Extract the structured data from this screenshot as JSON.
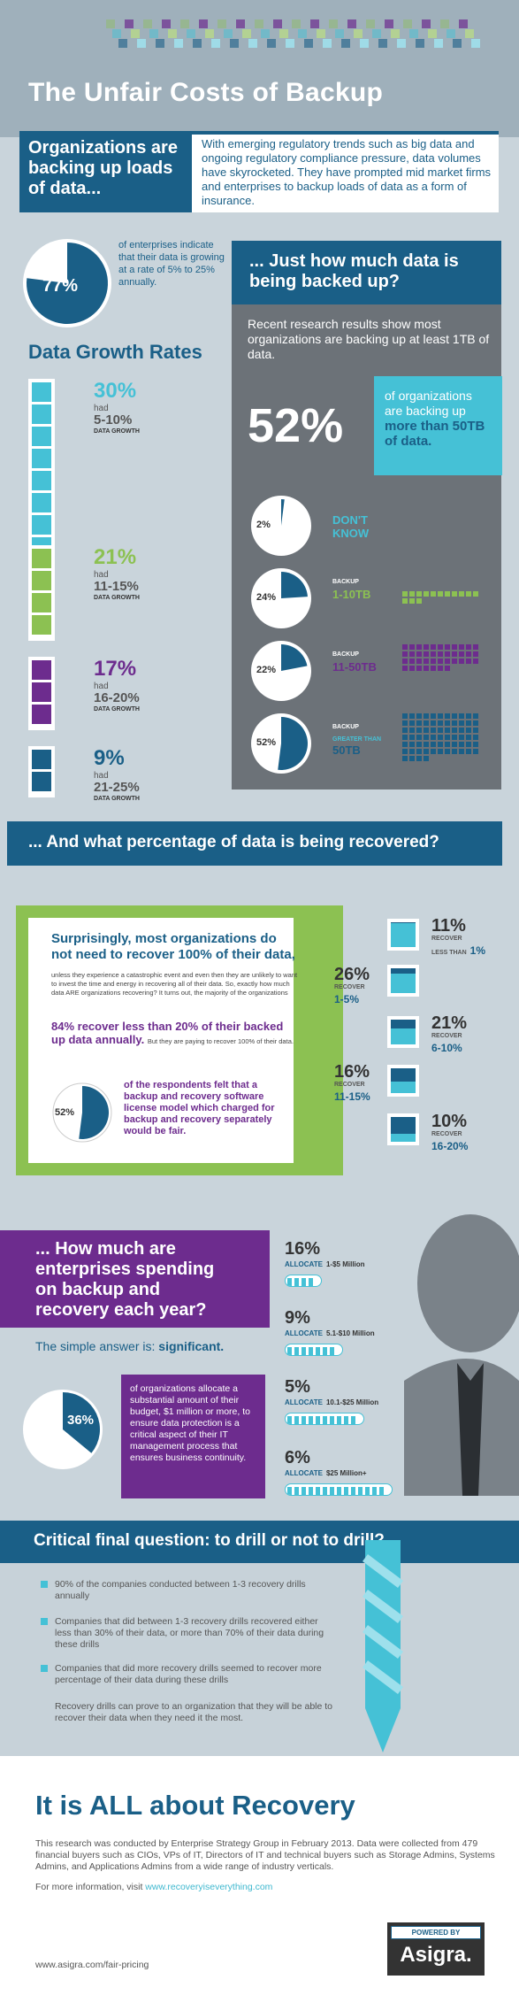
{
  "header": {
    "title": "The Unfair Costs of Backup"
  },
  "intro": {
    "label": "Organizations are backing up loads of data...",
    "text": "With emerging regulatory trends such as big data and ongoing regulatory compliance pressure, data volumes have skyrocketed. They have prompted mid market firms and enterprises to backup loads of data as a form of insurance."
  },
  "growth": {
    "pie_pct": "77%",
    "pie_fraction": 0.77,
    "pie_text": "of enterprises indicate that their data is growing at a rate of 5% to 25% annually."
  },
  "data_growth": {
    "title": "Data Growth Rates",
    "had": "had",
    "sub": "DATA GROWTH",
    "items": [
      {
        "pct": "30%",
        "range": "5-10%",
        "color": "#45c1d6",
        "blocks": 8
      },
      {
        "pct": "21%",
        "range": "11-15%",
        "color": "#8cc152",
        "blocks": 4
      },
      {
        "pct": "17%",
        "range": "16-20%",
        "color": "#6d2c8e",
        "blocks": 3
      },
      {
        "pct": "9%",
        "range": "21-25%",
        "color": "#1a5f87",
        "blocks": 2
      }
    ]
  },
  "backed_up": {
    "heading": "... Just how much data is being backed up?",
    "text": "Recent research results show most organizations are backing up at least 1TB of data.",
    "big_pct": "52%",
    "big_text_a": "of organizations are backing up",
    "big_text_b": "more than 50TB of data.",
    "pies": [
      {
        "pct": "2%",
        "value": 0.02,
        "label": "",
        "range": "DON'T KNOW",
        "range_color": "#45c1d6"
      },
      {
        "pct": "24%",
        "value": 0.24,
        "label": "BACKUP",
        "range": "1-10TB",
        "range_color": "#8cc152"
      },
      {
        "pct": "22%",
        "value": 0.22,
        "label": "BACKUP",
        "range": "11-50TB",
        "range_color": "#6d2c8e"
      },
      {
        "pct": "52%",
        "value": 0.52,
        "label": "BACKUP",
        "sublabel": "GREATER THAN",
        "range": "50TB",
        "range_color": "#1a5f87"
      }
    ]
  },
  "recovery_banner": "... And what percentage of data is being recovered?",
  "recovery": {
    "heading_a": "Surprisingly, most organizations do not need to recover 100% of their data,",
    "heading_small": "unless they experience a catastrophic event and even then they are unlikely to want to invest the time and energy in recovering all of their data. So, exactly how much data ARE organizations recovering? It turns out, the majority of the organizations",
    "highlight": "84% recover less than 20% of their backed up data annually.",
    "highlight_tail": "But they are paying to recover 100% of their data.",
    "pie_pct": "52%",
    "pie_fraction": 0.52,
    "pie_text": "of the respondents felt that a backup and recovery software license model which charged for backup and recovery separately would be fair.",
    "recover_word": "RECOVER",
    "items": [
      {
        "pct": "11%",
        "lead": "LESS THAN",
        "range": "1%"
      },
      {
        "pct": "26%",
        "lead": "",
        "range": "1-5%"
      },
      {
        "pct": "21%",
        "lead": "",
        "range": "6-10%"
      },
      {
        "pct": "16%",
        "lead": "",
        "range": "11-15%"
      },
      {
        "pct": "10%",
        "lead": "",
        "range": "16-20%"
      }
    ]
  },
  "spending": {
    "heading": "... How much are enterprises spending on backup and recovery each year?",
    "simple_a": "The simple answer is:",
    "simple_b": "significant.",
    "pie_pct": "36%",
    "pie_fraction": 0.36,
    "box_text": "of organizations allocate a substantial amount of their budget, $1 million or more, to ensure data protection is a critical aspect of their IT management process that ensures business continuity.",
    "allocate_word": "ALLOCATE",
    "items": [
      {
        "pct": "16%",
        "range": "1-$5 Million",
        "segments": 4
      },
      {
        "pct": "9%",
        "range": "5.1-$10 Million",
        "segments": 7
      },
      {
        "pct": "5%",
        "range": "10.1-$25 Million",
        "segments": 10
      },
      {
        "pct": "6%",
        "range": "$25 Million+",
        "segments": 14
      }
    ]
  },
  "drill": {
    "heading": "Critical final question: to drill or not to drill?",
    "items": [
      "90% of the companies conducted between 1-3 recovery drills annually",
      "Companies that did between 1-3 recovery drills recovered either less than 30% of their data, or more than 70% of their data during these drills",
      "Companies that did more recovery drills seemed to recover more percentage of their data during these drills"
    ],
    "note": "Recovery drills can prove to an organization that they will be able to recover their data when they need it the most."
  },
  "footer": {
    "title": "It is ALL about Recovery",
    "text": "This research was conducted by Enterprise Strategy Group in February 2013. Data were collected from 479 financial buyers such as CIOs, VPs of IT, Directors of IT and technical buyers such as Storage Admins, Systems Admins, and Applications Admins from a wide range of industry verticals.",
    "more_a": "For more information, visit",
    "more_link": "www.recoveryiseverything.com",
    "powered": "POWERED BY",
    "brand": "Asigra.",
    "url": "www.asigra.com/fair-pricing"
  },
  "colors": {
    "blue": "#1a5f87",
    "teal": "#45c1d6",
    "green": "#8cc152",
    "purple": "#6d2c8e",
    "gray": "#6c7278"
  }
}
